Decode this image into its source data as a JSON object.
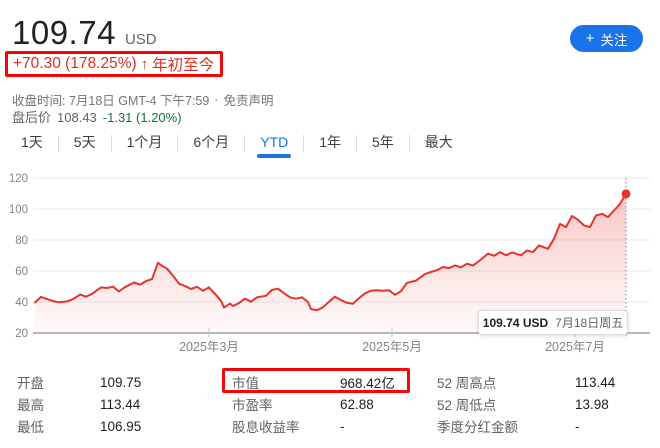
{
  "header": {
    "price": "109.74",
    "currency": "USD",
    "change_text": "+70.30 (178.25%)",
    "change_arrow": "↑",
    "change_period": "年初至今",
    "close_info": "收盘时间: 7月18日 GMT-4 下午7:59",
    "separator": "·",
    "disclaimer": "免责声明",
    "after_hours_label": "盘后价",
    "after_hours_price": "108.43",
    "after_hours_change": "-1.31 (1.20%)",
    "follow_plus": "+",
    "follow_label": "关注"
  },
  "tabs": {
    "items": [
      {
        "label": "1天",
        "selected": false
      },
      {
        "label": "5天",
        "selected": false
      },
      {
        "label": "1个月",
        "selected": false
      },
      {
        "label": "6个月",
        "selected": false
      },
      {
        "label": "YTD",
        "selected": true
      },
      {
        "label": "1年",
        "selected": false
      },
      {
        "label": "5年",
        "selected": false
      },
      {
        "label": "最大",
        "selected": false
      }
    ]
  },
  "chart_data": {
    "type": "line",
    "title": "YTD stock price",
    "ylabel": "",
    "xlabel": "",
    "ylim": [
      20,
      120
    ],
    "y_ticks": [
      20,
      40,
      60,
      80,
      100,
      120
    ],
    "x_axis_labels": [
      "2025年3月",
      "2025年5月",
      "2025年7月"
    ],
    "x_tick_days": [
      58,
      119,
      180
    ],
    "x_range_days": [
      0,
      197
    ],
    "grid": true,
    "legend": false,
    "line_color": "#e5342c",
    "series": [
      {
        "name": "price_usd",
        "points": [
          [
            0,
            39.7
          ],
          [
            2,
            43.3
          ],
          [
            4,
            41.9
          ],
          [
            6,
            40.6
          ],
          [
            8,
            39.8
          ],
          [
            11,
            40.5
          ],
          [
            13,
            42.2
          ],
          [
            15,
            44.8
          ],
          [
            17,
            43.4
          ],
          [
            19,
            45.2
          ],
          [
            22,
            49.4
          ],
          [
            24,
            49.0
          ],
          [
            26,
            49.9
          ],
          [
            28,
            46.8
          ],
          [
            30,
            49.6
          ],
          [
            33,
            52.6
          ],
          [
            35,
            51.2
          ],
          [
            37,
            53.5
          ],
          [
            39,
            54.8
          ],
          [
            41,
            65.3
          ],
          [
            42,
            63.8
          ],
          [
            44,
            61.5
          ],
          [
            46,
            57.0
          ],
          [
            48,
            51.8
          ],
          [
            50,
            50.3
          ],
          [
            52,
            48.4
          ],
          [
            54,
            49.8
          ],
          [
            56,
            47.2
          ],
          [
            58,
            49.4
          ],
          [
            60,
            45.3
          ],
          [
            62,
            40.8
          ],
          [
            63,
            36.4
          ],
          [
            65,
            39.0
          ],
          [
            66,
            37.4
          ],
          [
            68,
            39.3
          ],
          [
            70,
            42.2
          ],
          [
            72,
            40.2
          ],
          [
            74,
            43.0
          ],
          [
            77,
            44.0
          ],
          [
            79,
            47.8
          ],
          [
            81,
            48.6
          ],
          [
            83,
            45.7
          ],
          [
            85,
            43.0
          ],
          [
            87,
            42.1
          ],
          [
            89,
            43.0
          ],
          [
            91,
            40.0
          ],
          [
            92,
            35.4
          ],
          [
            94,
            34.7
          ],
          [
            96,
            36.6
          ],
          [
            98,
            40.2
          ],
          [
            100,
            43.4
          ],
          [
            102,
            41.2
          ],
          [
            104,
            39.5
          ],
          [
            106,
            38.9
          ],
          [
            108,
            42.5
          ],
          [
            110,
            45.6
          ],
          [
            112,
            47.3
          ],
          [
            114,
            47.6
          ],
          [
            116,
            47.2
          ],
          [
            118,
            47.6
          ],
          [
            120,
            44.6
          ],
          [
            122,
            47.0
          ],
          [
            124,
            52.4
          ],
          [
            127,
            53.8
          ],
          [
            130,
            58.0
          ],
          [
            132,
            59.4
          ],
          [
            134,
            60.5
          ],
          [
            136,
            62.6
          ],
          [
            138,
            61.8
          ],
          [
            140,
            63.6
          ],
          [
            142,
            62.4
          ],
          [
            144,
            64.7
          ],
          [
            146,
            63.5
          ],
          [
            148,
            66.4
          ],
          [
            151,
            71.2
          ],
          [
            153,
            69.8
          ],
          [
            155,
            72.2
          ],
          [
            157,
            70.1
          ],
          [
            159,
            72.0
          ],
          [
            162,
            70.1
          ],
          [
            164,
            73.3
          ],
          [
            166,
            72.2
          ],
          [
            168,
            76.5
          ],
          [
            171,
            74.3
          ],
          [
            173,
            80.8
          ],
          [
            175,
            90.4
          ],
          [
            177,
            88.3
          ],
          [
            179,
            95.5
          ],
          [
            181,
            93.0
          ],
          [
            183,
            89.4
          ],
          [
            185,
            88.3
          ],
          [
            187,
            95.8
          ],
          [
            189,
            96.9
          ],
          [
            191,
            94.8
          ],
          [
            193,
            99.0
          ],
          [
            195,
            103.3
          ],
          [
            197,
            109.74
          ]
        ]
      }
    ],
    "last_point": {
      "value": 109.74,
      "label": "7月18日周五"
    }
  },
  "tooltip": {
    "price": "109.74 USD",
    "date": "7月18日周五"
  },
  "stats": {
    "columns": [
      {
        "rows": [
          {
            "label": "开盘",
            "value": "109.75"
          },
          {
            "label": "最高",
            "value": "113.44"
          },
          {
            "label": "最低",
            "value": "106.95"
          }
        ]
      },
      {
        "rows": [
          {
            "label": "市值",
            "value": "968.42亿"
          },
          {
            "label": "市盈率",
            "value": "62.88"
          },
          {
            "label": "股息收益率",
            "value": "-"
          }
        ]
      },
      {
        "rows": [
          {
            "label": "52 周高点",
            "value": "113.44"
          },
          {
            "label": "52 周低点",
            "value": "13.98"
          },
          {
            "label": "季度分红金额",
            "value": "-"
          }
        ]
      }
    ]
  },
  "colors": {
    "accent_blue": "#1a73e8",
    "up_red_text": "#d93025",
    "chart_line_red": "#e5342c",
    "down_green": "#137333",
    "annotation_red": "#f40606",
    "axis_gray": "#80868b",
    "grid_gray": "#e8eaed"
  }
}
